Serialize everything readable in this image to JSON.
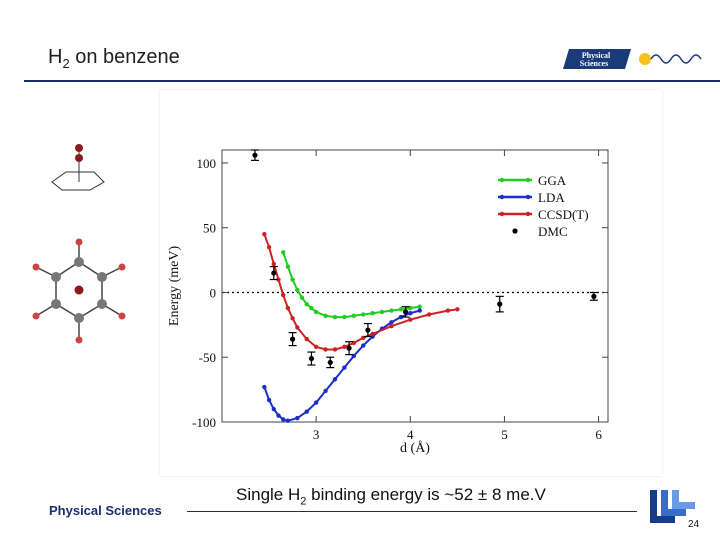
{
  "slide": {
    "title_main": "H",
    "title_sub": "2",
    "title_rest": " on benzene",
    "logo_line1": "Physical",
    "logo_line2": "Sciences",
    "footer_brand": "Physical Sciences",
    "caption_pre": "Single H",
    "caption_sub": "2",
    "caption_post": " binding energy is ~52 ± 8 me.V",
    "page_number": "24",
    "colors": {
      "accent": "#1a2e6e",
      "logo_bg": "#1a3a7a",
      "molecule_red": "#8b1a1a"
    }
  },
  "chart_data": {
    "type": "line",
    "xlabel": "d (Å)",
    "ylabel": "Energy (meV)",
    "xlim": [
      2.0,
      6.1
    ],
    "ylim": [
      -100,
      110
    ],
    "xticks": [
      3,
      4,
      5,
      6
    ],
    "yticks": [
      100,
      50,
      0,
      -50,
      -100
    ],
    "legend_position": "top-right",
    "zero_line": "dotted",
    "series": [
      {
        "name": "GGA",
        "color": "#22cc22",
        "x": [
          2.65,
          2.7,
          2.75,
          2.8,
          2.85,
          2.9,
          2.95,
          3.0,
          3.1,
          3.2,
          3.3,
          3.4,
          3.5,
          3.6,
          3.7,
          3.8,
          3.9,
          4.0,
          4.1
        ],
        "y": [
          31,
          20,
          10,
          2,
          -4,
          -9,
          -12,
          -15,
          -18,
          -19,
          -19,
          -18,
          -17,
          -16,
          -15,
          -14,
          -13,
          -12,
          -11
        ]
      },
      {
        "name": "LDA",
        "color": "#1a2ecc",
        "x": [
          2.45,
          2.5,
          2.55,
          2.6,
          2.65,
          2.7,
          2.8,
          2.9,
          3.0,
          3.1,
          3.2,
          3.3,
          3.4,
          3.5,
          3.6,
          3.7,
          3.8,
          3.9,
          4.0,
          4.1
        ],
        "y": [
          -73,
          -83,
          -90,
          -95,
          -98,
          -99,
          -97,
          -92,
          -85,
          -76,
          -67,
          -58,
          -49,
          -41,
          -34,
          -28,
          -23,
          -19,
          -16,
          -14
        ]
      },
      {
        "name": "CCSD(T)",
        "color": "#cc2222",
        "x": [
          2.45,
          2.5,
          2.55,
          2.6,
          2.65,
          2.7,
          2.75,
          2.8,
          2.9,
          3.0,
          3.1,
          3.2,
          3.3,
          3.4,
          3.5,
          3.6,
          3.8,
          4.0,
          4.2,
          4.4,
          4.5
        ],
        "y": [
          45,
          35,
          22,
          10,
          -2,
          -12,
          -20,
          -27,
          -36,
          -42,
          -44,
          -44,
          -42,
          -39,
          -35,
          -32,
          -26,
          -21,
          -17,
          -14,
          -13
        ]
      },
      {
        "name": "DMC",
        "color": "#000000",
        "style": "points_with_errorbars",
        "x": [
          2.35,
          2.55,
          2.75,
          2.95,
          3.15,
          3.35,
          3.55,
          3.95,
          4.95,
          5.95
        ],
        "y": [
          106,
          15,
          -36,
          -51,
          -54,
          -43,
          -29,
          -15,
          -9,
          -3
        ],
        "err": [
          4,
          5,
          5,
          5,
          4,
          5,
          5,
          4,
          6,
          3
        ]
      }
    ]
  }
}
